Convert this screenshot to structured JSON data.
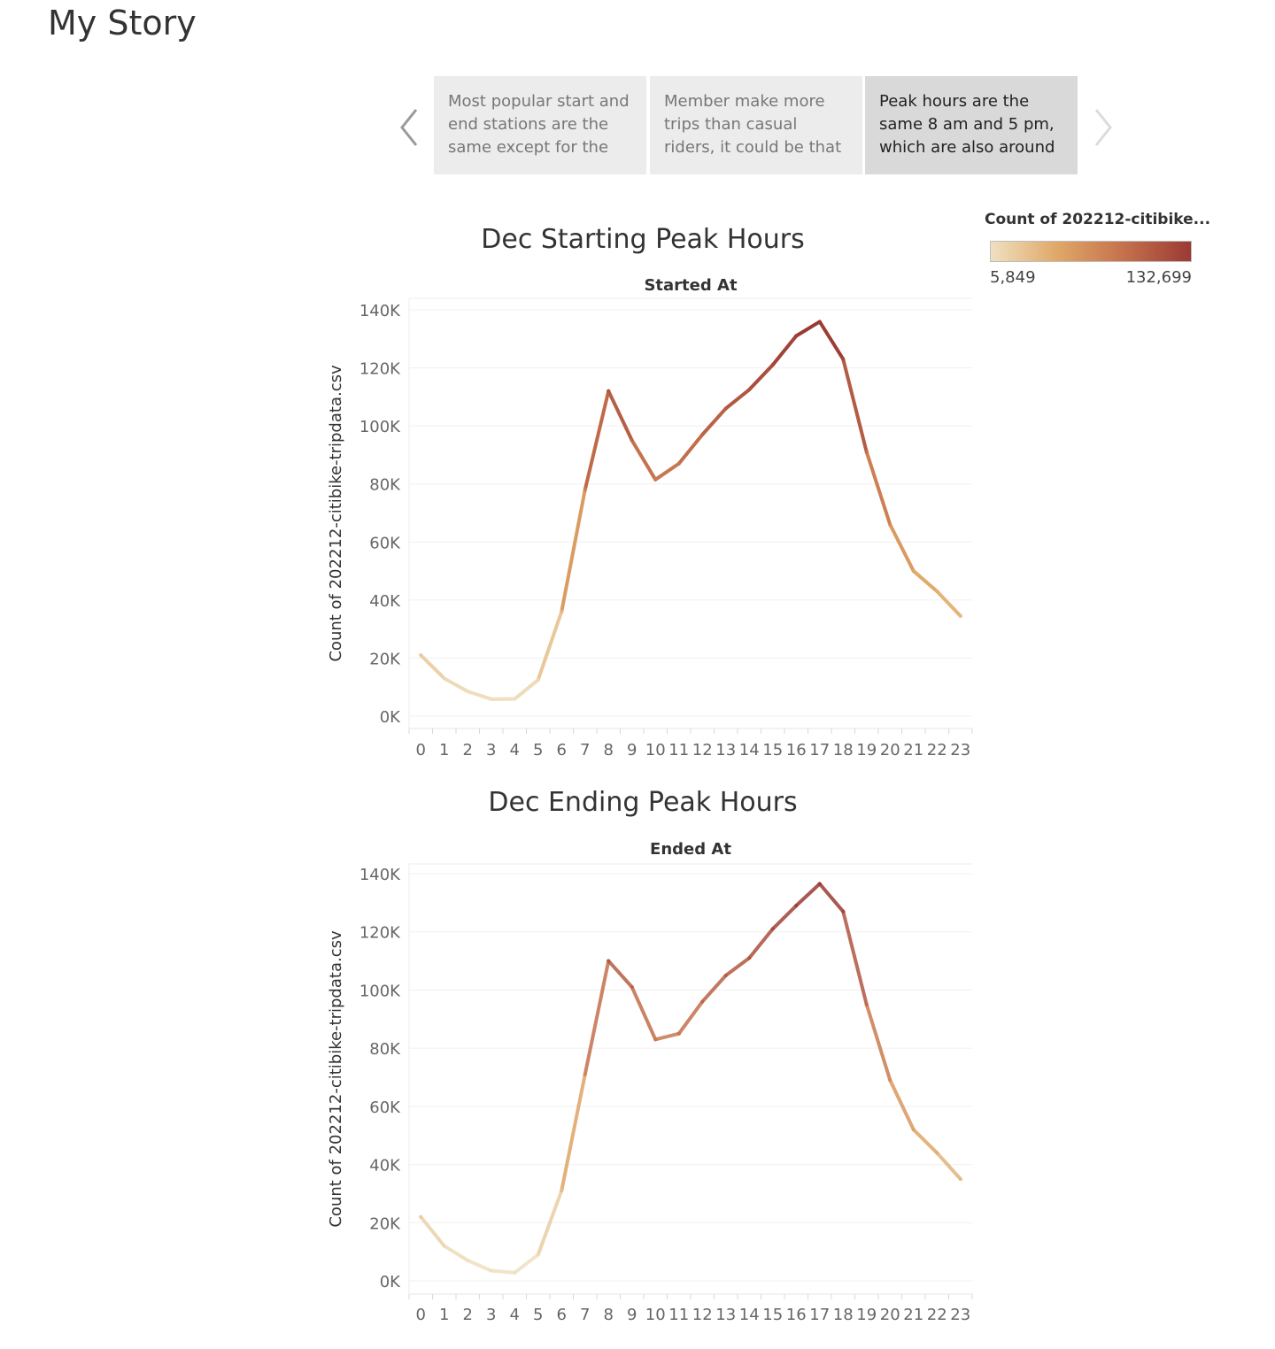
{
  "story": {
    "title": "My Story",
    "points": [
      {
        "text": "Most popular start and\nend stations are the\nsame except for the",
        "active": false
      },
      {
        "text": "Member make more\ntrips than casual\nriders, it could be that",
        "active": false
      },
      {
        "text": "Peak hours are the\nsame 8 am and 5 pm,\nwhich are also around",
        "active": true
      }
    ],
    "nav": {
      "prev_icon": "chevron-left-icon",
      "next_icon": "chevron-right-icon"
    }
  },
  "legend": {
    "title": "Count of 202212-citibike...",
    "min_label": "5,849",
    "max_label": "132,699",
    "min_value": 5849,
    "max_value": 132699,
    "colors": [
      "#efe0c0",
      "#e0a868",
      "#c4704c",
      "#9a3a34"
    ]
  },
  "chart_data": [
    {
      "type": "line",
      "title": "Dec Starting Peak Hours",
      "subtitle": "Started At",
      "ylabel": "Count of 202212-citibike-tripdata.csv",
      "ylim": [
        0,
        140000
      ],
      "yticks": [
        0,
        20000,
        40000,
        60000,
        80000,
        100000,
        120000,
        140000
      ],
      "ytick_labels": [
        "0K",
        "20K",
        "40K",
        "60K",
        "80K",
        "100K",
        "120K",
        "140K"
      ],
      "grid": true,
      "x": [
        "0",
        "1",
        "2",
        "3",
        "4",
        "5",
        "6",
        "7",
        "8",
        "9",
        "10",
        "11",
        "12",
        "13",
        "14",
        "15",
        "16",
        "17",
        "18",
        "19",
        "20",
        "21",
        "22",
        "23"
      ],
      "series": [
        {
          "values": [
            21000,
            13000,
            8500,
            5849,
            5900,
            12500,
            36000,
            78000,
            112000,
            95000,
            81500,
            87000,
            97000,
            106000,
            112500,
            121000,
            131000,
            135900,
            123000,
            91000,
            66000,
            50000,
            43000,
            34500
          ]
        }
      ]
    },
    {
      "type": "line",
      "title": "Dec Ending Peak Hours",
      "subtitle": "Ended At",
      "ylabel": "Count of 202212-citibike-tripdata.csv",
      "ylim": [
        0,
        140000
      ],
      "yticks": [
        0,
        20000,
        40000,
        60000,
        80000,
        100000,
        120000,
        140000
      ],
      "ytick_labels": [
        "0K",
        "20K",
        "40K",
        "60K",
        "80K",
        "100K",
        "120K",
        "140K"
      ],
      "grid": true,
      "x": [
        "0",
        "1",
        "2",
        "3",
        "4",
        "5",
        "6",
        "7",
        "8",
        "9",
        "10",
        "11",
        "12",
        "13",
        "14",
        "15",
        "16",
        "17",
        "18",
        "19",
        "20",
        "21",
        "22",
        "23"
      ],
      "series": [
        {
          "values": [
            22000,
            12000,
            7000,
            3500,
            2800,
            9000,
            31000,
            71000,
            110000,
            101000,
            83000,
            85000,
            96000,
            105000,
            111000,
            121000,
            129000,
            136500,
            127000,
            95000,
            69000,
            52000,
            44000,
            35000
          ]
        }
      ]
    }
  ]
}
